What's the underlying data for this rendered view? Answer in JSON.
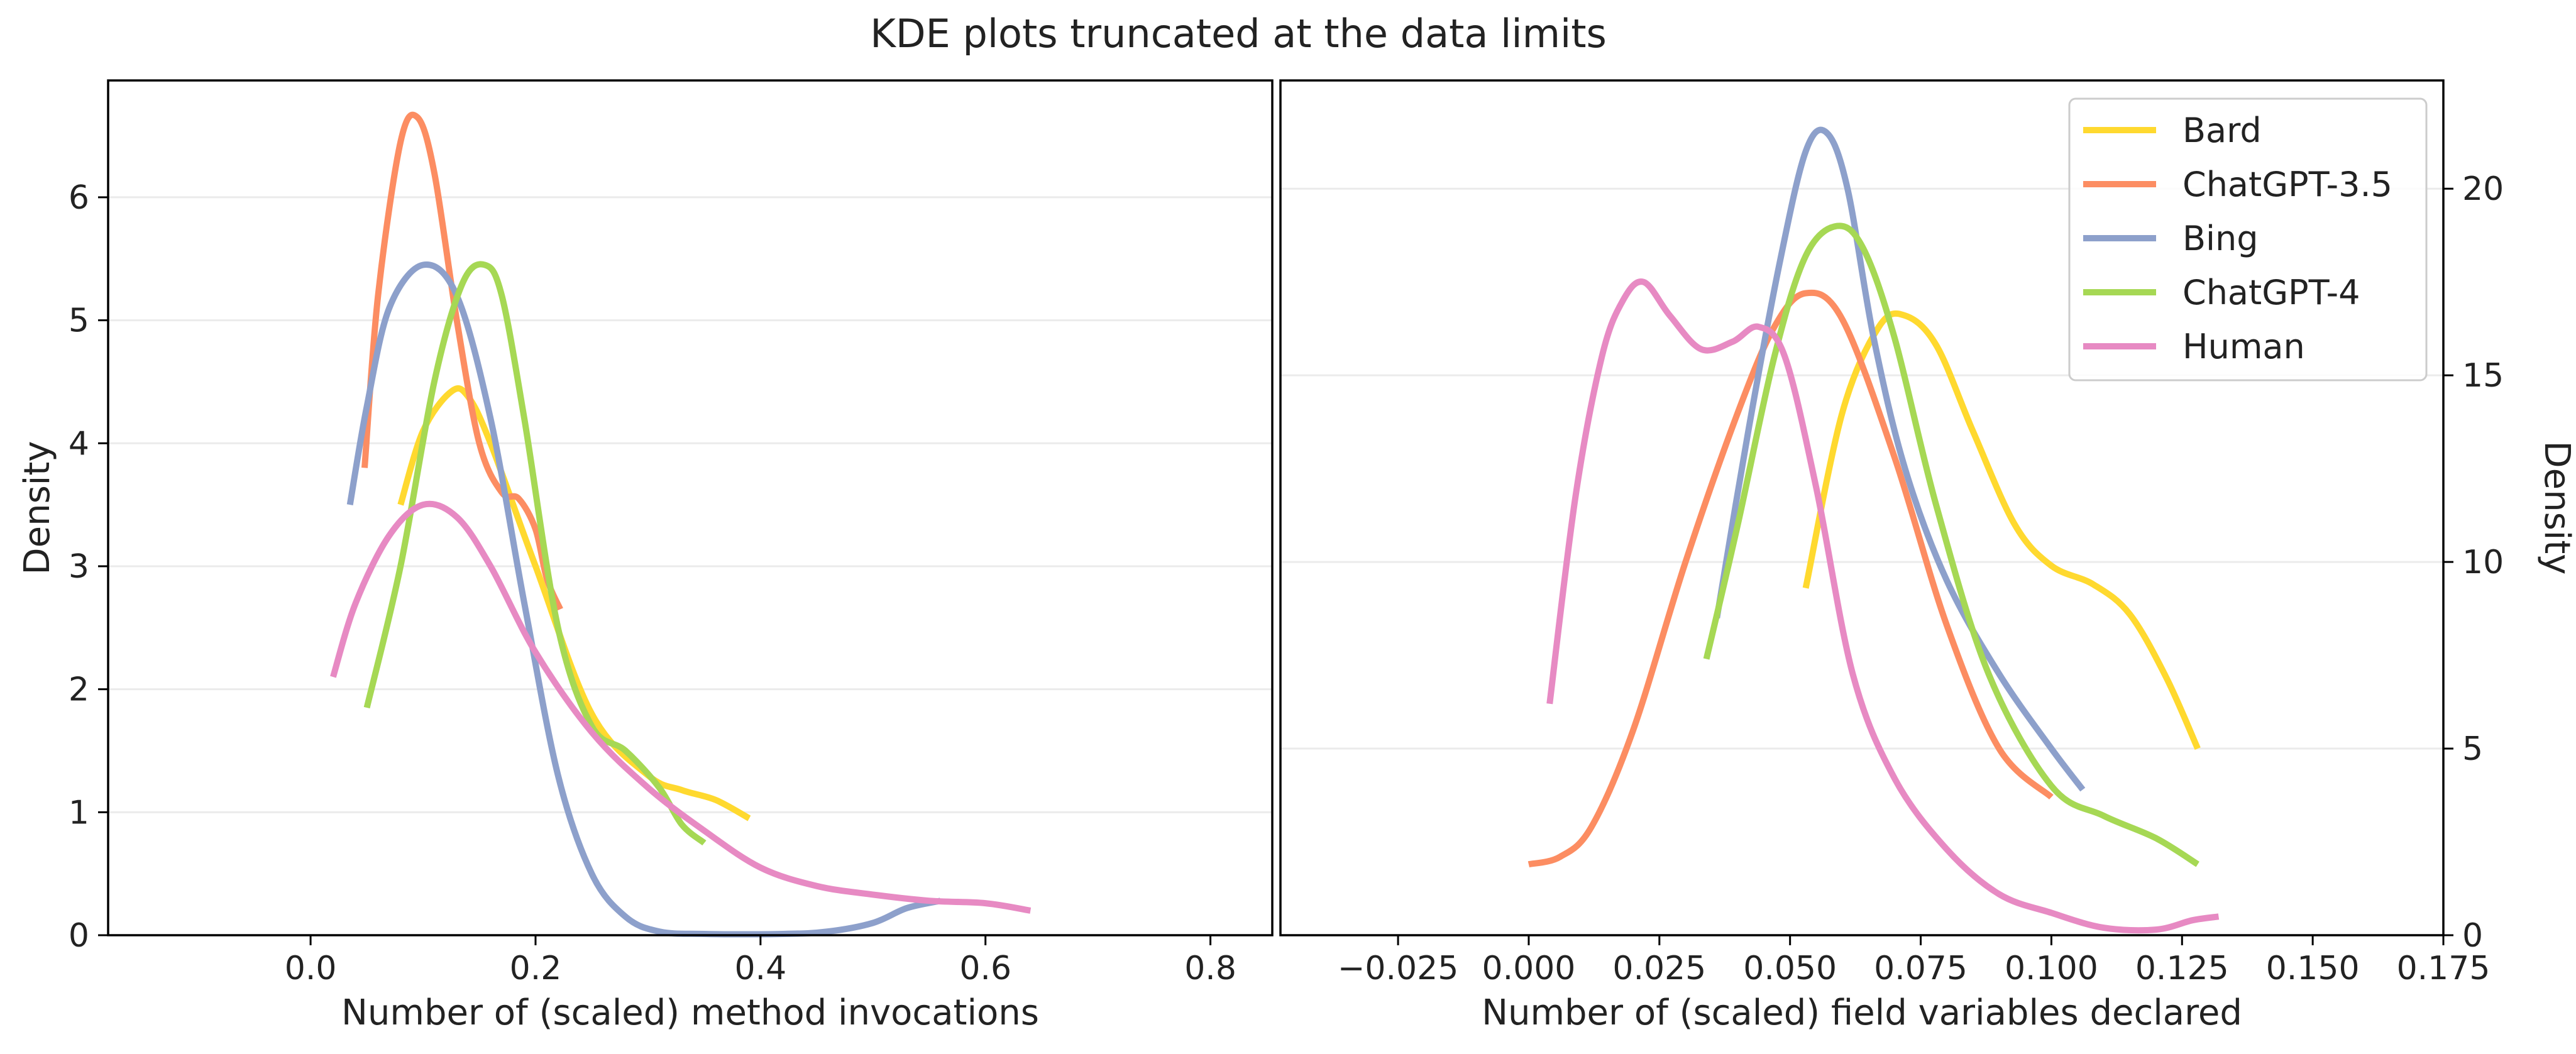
{
  "figure": {
    "title": "KDE plots truncated at the data limits"
  },
  "legend": {
    "placement": "upper-right of right panel",
    "entries": [
      {
        "name": "Bard",
        "color": "#ffd92f"
      },
      {
        "name": "ChatGPT-3.5",
        "color": "#fc8d62"
      },
      {
        "name": "Bing",
        "color": "#8da0cb"
      },
      {
        "name": "ChatGPT-4",
        "color": "#a6d854"
      },
      {
        "name": "Human",
        "color": "#e78ac3"
      }
    ]
  },
  "chart_data": [
    {
      "type": "line",
      "panel": "left",
      "xlabel": "Number of (scaled) method invocations",
      "ylabel": "Density",
      "ylabel_side": "left",
      "xlim": [
        -0.18,
        0.855
      ],
      "ylim": [
        0,
        6.95
      ],
      "xticks": [
        0.0,
        0.2,
        0.4,
        0.6,
        0.8
      ],
      "xtick_labels": [
        "0.0",
        "0.2",
        "0.4",
        "0.6",
        "0.8"
      ],
      "yticks": [
        0,
        1,
        2,
        3,
        4,
        5,
        6
      ],
      "ytick_labels": [
        "0",
        "1",
        "2",
        "3",
        "4",
        "5",
        "6"
      ],
      "grid": "horizontal",
      "series": [
        {
          "name": "Bard",
          "color": "#ffd92f",
          "x": [
            0.08,
            0.1,
            0.125,
            0.14,
            0.16,
            0.2,
            0.25,
            0.3,
            0.33,
            0.36,
            0.39
          ],
          "y": [
            3.5,
            4.1,
            4.42,
            4.38,
            4.0,
            3.0,
            1.8,
            1.3,
            1.18,
            1.1,
            0.95
          ]
        },
        {
          "name": "ChatGPT-3.5",
          "color": "#fc8d62",
          "x": [
            0.048,
            0.06,
            0.08,
            0.095,
            0.11,
            0.13,
            0.15,
            0.17,
            0.185,
            0.2,
            0.21,
            0.222
          ],
          "y": [
            3.8,
            5.2,
            6.45,
            6.65,
            6.2,
            5.0,
            4.0,
            3.6,
            3.55,
            3.3,
            2.9,
            2.65
          ]
        },
        {
          "name": "Bing",
          "color": "#8da0cb",
          "x": [
            0.035,
            0.05,
            0.07,
            0.1,
            0.13,
            0.16,
            0.19,
            0.22,
            0.25,
            0.28,
            0.31,
            0.35,
            0.42,
            0.46,
            0.5,
            0.53,
            0.56
          ],
          "y": [
            3.5,
            4.3,
            5.1,
            5.45,
            5.2,
            4.2,
            2.7,
            1.3,
            0.5,
            0.15,
            0.03,
            0.01,
            0.01,
            0.03,
            0.1,
            0.22,
            0.28
          ]
        },
        {
          "name": "ChatGPT-4",
          "color": "#a6d854",
          "x": [
            0.05,
            0.08,
            0.11,
            0.135,
            0.155,
            0.17,
            0.19,
            0.22,
            0.25,
            0.28,
            0.31,
            0.33,
            0.35
          ],
          "y": [
            1.85,
            3.0,
            4.5,
            5.3,
            5.45,
            5.2,
            4.2,
            2.5,
            1.7,
            1.5,
            1.2,
            0.9,
            0.75
          ]
        },
        {
          "name": "Human",
          "color": "#e78ac3",
          "x": [
            0.02,
            0.04,
            0.07,
            0.1,
            0.13,
            0.16,
            0.2,
            0.25,
            0.3,
            0.35,
            0.4,
            0.45,
            0.5,
            0.55,
            0.6,
            0.64
          ],
          "y": [
            2.1,
            2.7,
            3.25,
            3.5,
            3.4,
            3.0,
            2.3,
            1.65,
            1.2,
            0.85,
            0.55,
            0.4,
            0.33,
            0.28,
            0.26,
            0.2
          ]
        }
      ]
    },
    {
      "type": "line",
      "panel": "right",
      "xlabel": "Number of (scaled) field variables declared",
      "ylabel": "Density",
      "ylabel_side": "right",
      "xlim": [
        -0.0475,
        0.175
      ],
      "ylim": [
        0,
        22.9
      ],
      "xticks": [
        -0.025,
        0.0,
        0.025,
        0.05,
        0.075,
        0.1,
        0.125,
        0.15,
        0.175
      ],
      "xtick_labels": [
        "−0.025",
        "0.000",
        "0.025",
        "0.050",
        "0.075",
        "0.100",
        "0.125",
        "0.150",
        "0.175"
      ],
      "yticks": [
        0,
        5,
        10,
        15,
        20
      ],
      "ytick_labels": [
        "0",
        "5",
        "10",
        "15",
        "20"
      ],
      "grid": "horizontal",
      "series": [
        {
          "name": "Bard",
          "color": "#ffd92f",
          "x": [
            0.053,
            0.06,
            0.067,
            0.072,
            0.078,
            0.085,
            0.093,
            0.1,
            0.108,
            0.115,
            0.122,
            0.128
          ],
          "y": [
            9.3,
            14.0,
            16.3,
            16.6,
            15.8,
            13.5,
            11.0,
            9.9,
            9.4,
            8.6,
            6.9,
            5.0
          ]
        },
        {
          "name": "ChatGPT-3.5",
          "color": "#fc8d62",
          "x": [
            0.0,
            0.006,
            0.012,
            0.02,
            0.03,
            0.04,
            0.047,
            0.053,
            0.06,
            0.07,
            0.08,
            0.09,
            0.1
          ],
          "y": [
            1.9,
            2.1,
            2.9,
            5.5,
            10.0,
            14.0,
            16.3,
            17.2,
            16.5,
            12.8,
            8.3,
            5.0,
            3.7
          ]
        },
        {
          "name": "Bing",
          "color": "#8da0cb",
          "x": [
            0.036,
            0.042,
            0.048,
            0.053,
            0.057,
            0.061,
            0.066,
            0.072,
            0.08,
            0.09,
            0.1,
            0.106
          ],
          "y": [
            8.5,
            13.5,
            18.0,
            21.0,
            21.5,
            20.0,
            16.0,
            12.5,
            9.5,
            7.0,
            5.0,
            3.9
          ]
        },
        {
          "name": "ChatGPT-4",
          "color": "#a6d854",
          "x": [
            0.034,
            0.04,
            0.047,
            0.053,
            0.059,
            0.064,
            0.07,
            0.078,
            0.088,
            0.1,
            0.11,
            0.12,
            0.128
          ],
          "y": [
            7.4,
            11.0,
            15.5,
            18.2,
            19.0,
            18.4,
            16.0,
            11.5,
            7.0,
            4.0,
            3.2,
            2.6,
            1.9
          ]
        },
        {
          "name": "Human",
          "color": "#e78ac3",
          "x": [
            0.004,
            0.009,
            0.014,
            0.018,
            0.022,
            0.027,
            0.033,
            0.039,
            0.044,
            0.049,
            0.055,
            0.062,
            0.07,
            0.08,
            0.09,
            0.1,
            0.11,
            0.12,
            0.127,
            0.132
          ],
          "y": [
            6.2,
            11.8,
            15.5,
            17.0,
            17.5,
            16.6,
            15.7,
            15.9,
            16.3,
            15.5,
            12.0,
            7.0,
            4.2,
            2.3,
            1.1,
            0.6,
            0.2,
            0.15,
            0.4,
            0.5
          ]
        }
      ]
    }
  ]
}
